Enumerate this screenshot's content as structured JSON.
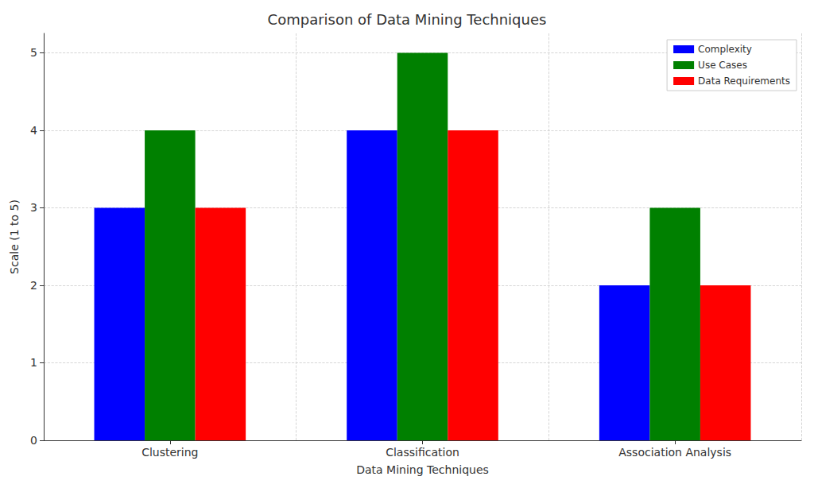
{
  "chart_data": {
    "type": "bar",
    "title": "Comparison of Data Mining Techniques",
    "x_label": "Data Mining Techniques",
    "y_label": "Scale (1 to 5)",
    "categories": [
      "Clustering",
      "Classification",
      "Association Analysis"
    ],
    "series": [
      {
        "name": "Complexity",
        "color": "#0000ff",
        "values": [
          3,
          4,
          2
        ]
      },
      {
        "name": "Use Cases",
        "color": "#008000",
        "values": [
          4,
          5,
          3
        ]
      },
      {
        "name": "Data Requirements",
        "color": "#ff0000",
        "values": [
          3,
          4,
          2
        ]
      }
    ],
    "ylim": [
      0,
      5.25
    ],
    "yticks": [
      0,
      1,
      2,
      3,
      4,
      5
    ],
    "grid": true,
    "legend": "upper right"
  }
}
